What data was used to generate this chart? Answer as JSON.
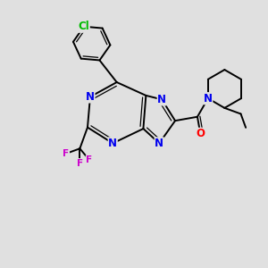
{
  "bg_color": "#e0e0e0",
  "bond_color": "#000000",
  "atom_colors": {
    "N": "#0000ee",
    "O": "#ff0000",
    "Cl": "#00bb00",
    "F": "#cc00cc"
  },
  "lw": 1.4,
  "lw_thin": 0.9,
  "fs": 8.0,
  "fs_small": 7.5
}
